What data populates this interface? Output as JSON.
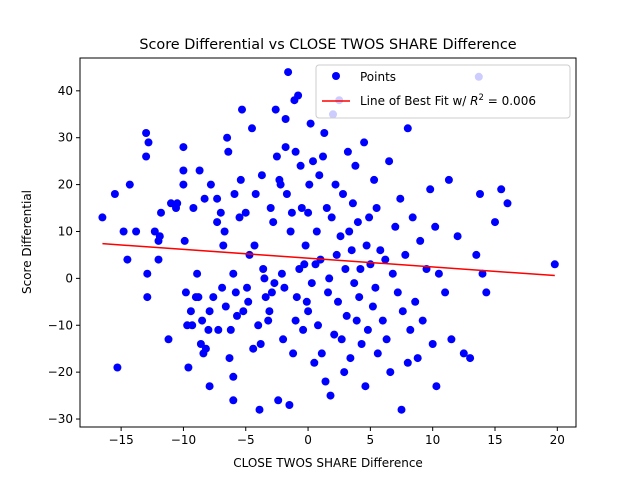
{
  "chart_data": {
    "type": "scatter",
    "title": "Score Differential vs CLOSE TWOS SHARE Difference",
    "xlabel": "CLOSE TWOS SHARE Difference",
    "ylabel": "Score Differential",
    "xlim": [
      -18.3,
      21.5
    ],
    "ylim": [
      -31.7,
      47.0
    ],
    "xticks": [
      -15,
      -10,
      -5,
      0,
      5,
      10,
      15,
      20
    ],
    "yticks": [
      -30,
      -20,
      -10,
      0,
      10,
      20,
      30,
      40
    ],
    "xtick_labels": [
      "−15",
      "−10",
      "−5",
      "0",
      "5",
      "10",
      "15",
      "20"
    ],
    "ytick_labels": [
      "−30",
      "−20",
      "−10",
      "0",
      "10",
      "20",
      "30",
      "40"
    ],
    "grid": false,
    "legend_position": "top-right",
    "series": [
      {
        "name": "Points",
        "kind": "scatter",
        "color": "#0000ff",
        "points": [
          [
            -16.5,
            13
          ],
          [
            -15.5,
            18
          ],
          [
            -15.3,
            -19
          ],
          [
            -14.8,
            10
          ],
          [
            -14.5,
            4
          ],
          [
            -14.3,
            20
          ],
          [
            -13.8,
            10
          ],
          [
            -13,
            31
          ],
          [
            -13,
            26
          ],
          [
            -12.9,
            -4
          ],
          [
            -12.9,
            1
          ],
          [
            -12.8,
            29
          ],
          [
            -12.3,
            10
          ],
          [
            -12,
            4
          ],
          [
            -12,
            8
          ],
          [
            -11.9,
            9
          ],
          [
            -11.8,
            14
          ],
          [
            -11.2,
            -13
          ],
          [
            -11,
            16
          ],
          [
            -10.6,
            15
          ],
          [
            -10.5,
            16
          ],
          [
            -10,
            28
          ],
          [
            -10,
            23
          ],
          [
            -10,
            20
          ],
          [
            -9.9,
            8
          ],
          [
            -9.8,
            -3
          ],
          [
            -9.6,
            -19
          ],
          [
            -9.7,
            -10
          ],
          [
            -9.4,
            -7
          ],
          [
            -9.3,
            -10
          ],
          [
            -9.2,
            15
          ],
          [
            -9,
            -4
          ],
          [
            -8.9,
            1
          ],
          [
            -8.8,
            -4
          ],
          [
            -8.7,
            23
          ],
          [
            -8.6,
            -14
          ],
          [
            -8.5,
            -9
          ],
          [
            -8.4,
            -16
          ],
          [
            -8.3,
            17
          ],
          [
            -8.2,
            -15
          ],
          [
            -8,
            -11
          ],
          [
            -7.9,
            -23
          ],
          [
            -7.9,
            -7
          ],
          [
            -7.8,
            20
          ],
          [
            -7.6,
            -4
          ],
          [
            -7.3,
            12
          ],
          [
            -7.3,
            17
          ],
          [
            -7.2,
            -11
          ],
          [
            -7,
            14
          ],
          [
            -6.9,
            -2
          ],
          [
            -6.8,
            7
          ],
          [
            -6.7,
            10
          ],
          [
            -6.6,
            -6
          ],
          [
            -6.5,
            30
          ],
          [
            -6.4,
            27
          ],
          [
            -6.3,
            -17
          ],
          [
            -6.2,
            -11
          ],
          [
            -6,
            -21
          ],
          [
            -6,
            1
          ],
          [
            -6,
            -26
          ],
          [
            -5.9,
            18
          ],
          [
            -5.8,
            -3
          ],
          [
            -5.7,
            -8
          ],
          [
            -5.5,
            13
          ],
          [
            -5.4,
            21
          ],
          [
            -5.3,
            36
          ],
          [
            -5.2,
            -7
          ],
          [
            -5,
            14
          ],
          [
            -4.9,
            -2
          ],
          [
            -4.8,
            -5
          ],
          [
            -4.7,
            5
          ],
          [
            -4.5,
            32
          ],
          [
            -4.4,
            -15
          ],
          [
            -4.3,
            7
          ],
          [
            -4.2,
            18
          ],
          [
            -4,
            -10
          ],
          [
            -3.9,
            -28
          ],
          [
            -3.8,
            -14
          ],
          [
            -3.7,
            22
          ],
          [
            -3.6,
            2
          ],
          [
            -3.5,
            0
          ],
          [
            -3.4,
            -4
          ],
          [
            -3.2,
            -9
          ],
          [
            -3.1,
            -7
          ],
          [
            -3,
            15
          ],
          [
            -2.9,
            -3
          ],
          [
            -2.8,
            12
          ],
          [
            -2.7,
            -1
          ],
          [
            -2.6,
            36
          ],
          [
            -2.5,
            26
          ],
          [
            -2.4,
            -26
          ],
          [
            -2.3,
            21
          ],
          [
            -2.2,
            20
          ],
          [
            -2.1,
            1
          ],
          [
            -2,
            -13
          ],
          [
            -1.9,
            -2
          ],
          [
            -1.8,
            34
          ],
          [
            -1.8,
            28
          ],
          [
            -1.7,
            18
          ],
          [
            -1.6,
            44
          ],
          [
            -1.5,
            -27
          ],
          [
            -1.4,
            10
          ],
          [
            -1.3,
            14
          ],
          [
            -1.2,
            -16
          ],
          [
            -1.1,
            38
          ],
          [
            -1,
            -9
          ],
          [
            -1,
            27
          ],
          [
            -0.9,
            -4
          ],
          [
            -0.8,
            39
          ],
          [
            -0.7,
            2
          ],
          [
            -0.6,
            24
          ],
          [
            -0.5,
            15
          ],
          [
            -0.4,
            -11
          ],
          [
            -0.3,
            3
          ],
          [
            -0.2,
            7
          ],
          [
            -0.1,
            -5
          ],
          [
            0,
            14
          ],
          [
            0,
            -7
          ],
          [
            0.1,
            20
          ],
          [
            0.2,
            33
          ],
          [
            0.3,
            -1
          ],
          [
            0.4,
            25
          ],
          [
            0.5,
            -18
          ],
          [
            0.6,
            3
          ],
          [
            0.7,
            10
          ],
          [
            0.8,
            -10
          ],
          [
            0.9,
            22
          ],
          [
            1,
            4
          ],
          [
            1.1,
            -16
          ],
          [
            1.2,
            26
          ],
          [
            1.3,
            31
          ],
          [
            1.4,
            -22
          ],
          [
            1.5,
            15
          ],
          [
            1.6,
            -3
          ],
          [
            1.7,
            0
          ],
          [
            1.8,
            -25
          ],
          [
            1.9,
            13
          ],
          [
            2,
            35
          ],
          [
            2.1,
            -12
          ],
          [
            2.2,
            20
          ],
          [
            2.3,
            5
          ],
          [
            2.4,
            -5
          ],
          [
            2.5,
            38
          ],
          [
            2.6,
            9
          ],
          [
            2.7,
            -13
          ],
          [
            2.8,
            18
          ],
          [
            2.9,
            -20
          ],
          [
            3,
            2
          ],
          [
            3.1,
            -8
          ],
          [
            3.2,
            27
          ],
          [
            3.3,
            10
          ],
          [
            3.4,
            -17
          ],
          [
            3.5,
            6
          ],
          [
            3.6,
            16
          ],
          [
            3.7,
            -1
          ],
          [
            3.8,
            24
          ],
          [
            3.9,
            -9
          ],
          [
            4,
            12
          ],
          [
            4.1,
            -4
          ],
          [
            4.2,
            2
          ],
          [
            4.3,
            -14
          ],
          [
            4.5,
            29
          ],
          [
            4.6,
            -23
          ],
          [
            4.7,
            7
          ],
          [
            4.8,
            -11
          ],
          [
            4.9,
            13
          ],
          [
            5,
            3
          ],
          [
            5.2,
            -6
          ],
          [
            5.3,
            21
          ],
          [
            5.4,
            -2
          ],
          [
            5.5,
            15
          ],
          [
            5.6,
            -16
          ],
          [
            5.8,
            6
          ],
          [
            6,
            -9
          ],
          [
            6.2,
            4
          ],
          [
            6.3,
            -13
          ],
          [
            6.5,
            25
          ],
          [
            6.6,
            -20
          ],
          [
            6.8,
            1
          ],
          [
            7,
            11
          ],
          [
            7.2,
            -3
          ],
          [
            7.4,
            17
          ],
          [
            7.5,
            -28
          ],
          [
            7.6,
            -7
          ],
          [
            7.8,
            5
          ],
          [
            8,
            32
          ],
          [
            8,
            -18
          ],
          [
            8.2,
            -11
          ],
          [
            8.4,
            13
          ],
          [
            8.6,
            -5
          ],
          [
            8.8,
            -17
          ],
          [
            9,
            8
          ],
          [
            9.2,
            -9
          ],
          [
            9.5,
            2
          ],
          [
            9.8,
            19
          ],
          [
            10,
            -14
          ],
          [
            10.2,
            11
          ],
          [
            10.3,
            -23
          ],
          [
            10.5,
            1
          ],
          [
            11,
            -3
          ],
          [
            11.3,
            21
          ],
          [
            11.5,
            -13
          ],
          [
            12,
            9
          ],
          [
            12.5,
            -16
          ],
          [
            13,
            -17
          ],
          [
            13.5,
            5
          ],
          [
            13.8,
            18
          ],
          [
            14,
            1
          ],
          [
            14.3,
            -3
          ],
          [
            15,
            12
          ],
          [
            15.5,
            19
          ],
          [
            16,
            16
          ],
          [
            19.8,
            3
          ],
          [
            13.7,
            43
          ]
        ]
      }
    ],
    "fit_line": {
      "name": "Line of Best Fit w/ R² = 0.006",
      "name_prefix": "Line of Best Fit w/ ",
      "name_r": "R",
      "name_exp": "2",
      "name_suffix": " = 0.006",
      "color": "#ff0000",
      "x": [
        -16.5,
        19.8
      ],
      "y": [
        7.4,
        0.6
      ]
    }
  }
}
